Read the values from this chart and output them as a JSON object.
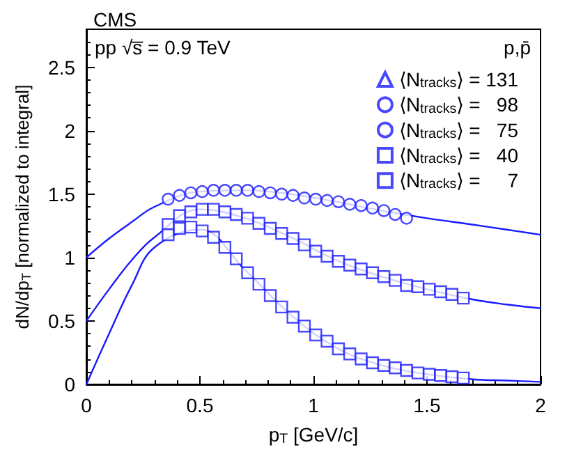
{
  "chart_data": {
    "type": "scatter",
    "title": "CMS",
    "xlabel": "p$_{T}$ [GeV/c]",
    "ylabel": "dN/dp$_{T}$ [normalized to integral]",
    "annotations": [
      "pp √s̅ = 0.9 TeV",
      "p,p̄"
    ],
    "xlim": [
      0,
      2
    ],
    "ylim": [
      0,
      2.8
    ],
    "xticks": [
      0,
      0.5,
      1,
      1.5,
      2
    ],
    "yticks": [
      0,
      0.5,
      1,
      1.5,
      2,
      2.5
    ],
    "legend": "top right",
    "grid": false,
    "series": [
      {
        "name": "⟨N$_{tracks}$⟩ = 131",
        "color": "#1a1aff",
        "marker": "triangle"
      },
      {
        "name": "⟨N$_{tracks}$⟩ =   98",
        "color": "#1a1aff",
        "marker": "circle"
      },
      {
        "name": "⟨N$_{tracks}$⟩ =   75",
        "color": "#1a1aff",
        "marker": "circle",
        "x": [
          0.36,
          0.41,
          0.46,
          0.51,
          0.56,
          0.61,
          0.66,
          0.71,
          0.76,
          0.81,
          0.86,
          0.91,
          0.96,
          1.01,
          1.06,
          1.11,
          1.16,
          1.21,
          1.26,
          1.31,
          1.36,
          1.41
        ],
        "values": [
          1.46,
          1.49,
          1.51,
          1.52,
          1.53,
          1.53,
          1.53,
          1.53,
          1.52,
          1.51,
          1.5,
          1.49,
          1.47,
          1.46,
          1.45,
          1.44,
          1.42,
          1.41,
          1.39,
          1.37,
          1.34,
          1.31
        ]
      },
      {
        "name": "⟨N$_{tracks}$⟩ =   40",
        "color": "#1a1aff",
        "marker": "square",
        "x": [
          0.36,
          0.41,
          0.46,
          0.51,
          0.56,
          0.61,
          0.66,
          0.71,
          0.76,
          0.81,
          0.86,
          0.91,
          0.96,
          1.01,
          1.06,
          1.11,
          1.16,
          1.21,
          1.26,
          1.31,
          1.36,
          1.41,
          1.46,
          1.51,
          1.56,
          1.61,
          1.66
        ],
        "values": [
          1.26,
          1.33,
          1.36,
          1.38,
          1.38,
          1.36,
          1.34,
          1.31,
          1.27,
          1.23,
          1.19,
          1.15,
          1.1,
          1.05,
          1.01,
          0.97,
          0.94,
          0.91,
          0.88,
          0.85,
          0.82,
          0.78,
          0.77,
          0.75,
          0.73,
          0.71,
          0.68
        ]
      },
      {
        "name": "⟨N$_{tracks}$⟩ =     7",
        "color": "#1a1aff",
        "marker": "square",
        "x": [
          0.36,
          0.41,
          0.46,
          0.51,
          0.56,
          0.61,
          0.66,
          0.71,
          0.76,
          0.81,
          0.86,
          0.91,
          0.96,
          1.01,
          1.06,
          1.11,
          1.16,
          1.21,
          1.26,
          1.31,
          1.36,
          1.41,
          1.46,
          1.51,
          1.56,
          1.61,
          1.66
        ],
        "values": [
          1.18,
          1.23,
          1.24,
          1.21,
          1.16,
          1.08,
          0.99,
          0.88,
          0.79,
          0.7,
          0.61,
          0.53,
          0.46,
          0.39,
          0.34,
          0.28,
          0.24,
          0.2,
          0.17,
          0.15,
          0.13,
          0.11,
          0.09,
          0.08,
          0.07,
          0.06,
          0.05
        ]
      },
      {
        "type": "line",
        "color": "#1a1aff",
        "marker": "none",
        "x": [
          0,
          0.1,
          0.2,
          0.3,
          0.5,
          0.7,
          0.9,
          1.1,
          1.3,
          1.5,
          1.7,
          1.85,
          2
        ],
        "values": [
          1.0,
          1.15,
          1.28,
          1.4,
          1.52,
          1.53,
          1.5,
          1.44,
          1.37,
          1.31,
          1.26,
          1.22,
          1.18
        ]
      },
      {
        "type": "line",
        "color": "#1a1aff",
        "marker": "none",
        "x": [
          0,
          0.1,
          0.2,
          0.3,
          0.5,
          0.7,
          0.9,
          1.1,
          1.3,
          1.5,
          1.7,
          1.85,
          2
        ],
        "values": [
          0.5,
          0.75,
          0.98,
          1.16,
          1.38,
          1.31,
          1.16,
          0.98,
          0.85,
          0.75,
          0.67,
          0.63,
          0.6
        ]
      },
      {
        "type": "line",
        "color": "#1a1aff",
        "marker": "none",
        "x": [
          0,
          0.1,
          0.2,
          0.3,
          0.5,
          0.7,
          0.9,
          1.1,
          1.3,
          1.5,
          1.7,
          1.85,
          2
        ],
        "values": [
          0,
          0.4,
          0.78,
          1.08,
          1.22,
          0.9,
          0.55,
          0.29,
          0.15,
          0.08,
          0.04,
          0.03,
          0.02
        ]
      }
    ]
  }
}
